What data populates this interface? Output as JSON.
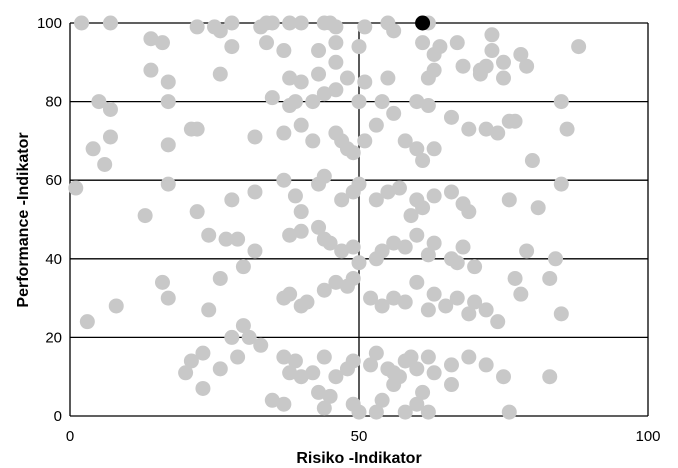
{
  "chart_data": {
    "type": "scatter",
    "title": "",
    "xlabel": "Risiko -Indikator",
    "ylabel": "Performance -Indikator",
    "xlim": [
      0,
      100
    ],
    "ylim": [
      0,
      100
    ],
    "x_ticks": [
      "0",
      "50",
      "100"
    ],
    "y_ticks": [
      "0",
      "20",
      "40",
      "60",
      "80",
      "100"
    ],
    "grid": "horizontal lines at every 20 on y; vertical line at x = 50",
    "legend": "none",
    "colors": {
      "points": "#c8c8c8",
      "highlight": "#000000",
      "grid": "#000000"
    },
    "highlight_point": {
      "x": 61,
      "y": 100
    },
    "series": [
      {
        "values": [
          [
            2,
            100
          ],
          [
            7,
            100
          ],
          [
            22,
            99
          ],
          [
            26,
            98
          ],
          [
            28,
            100
          ],
          [
            34,
            100
          ],
          [
            35,
            100
          ],
          [
            38,
            100
          ],
          [
            40,
            100
          ],
          [
            44,
            100
          ],
          [
            45,
            100
          ],
          [
            46,
            99
          ],
          [
            51,
            99
          ],
          [
            55,
            100
          ],
          [
            56,
            98
          ],
          [
            62,
            100
          ],
          [
            14,
            96
          ],
          [
            16,
            95
          ],
          [
            25,
            99
          ],
          [
            28,
            94
          ],
          [
            33,
            99
          ],
          [
            34,
            95
          ],
          [
            37,
            93
          ],
          [
            43,
            93
          ],
          [
            46,
            95
          ],
          [
            50,
            94
          ],
          [
            61,
            95
          ],
          [
            63,
            92
          ],
          [
            64,
            94
          ],
          [
            67,
            95
          ],
          [
            73,
            97
          ],
          [
            78,
            92
          ],
          [
            88,
            94
          ],
          [
            14,
            88
          ],
          [
            17,
            85
          ],
          [
            26,
            87
          ],
          [
            38,
            86
          ],
          [
            40,
            85
          ],
          [
            43,
            87
          ],
          [
            46,
            90
          ],
          [
            48,
            86
          ],
          [
            51,
            85
          ],
          [
            55,
            86
          ],
          [
            62,
            86
          ],
          [
            63,
            88
          ],
          [
            68,
            89
          ],
          [
            71,
            87
          ],
          [
            72,
            89
          ],
          [
            73,
            93
          ],
          [
            75,
            90
          ],
          [
            79,
            89
          ],
          [
            5,
            80
          ],
          [
            7,
            78
          ],
          [
            17,
            80
          ],
          [
            35,
            81
          ],
          [
            38,
            79
          ],
          [
            39,
            80
          ],
          [
            42,
            80
          ],
          [
            44,
            82
          ],
          [
            46,
            83
          ],
          [
            50,
            80
          ],
          [
            54,
            80
          ],
          [
            60,
            80
          ],
          [
            62,
            79
          ],
          [
            71,
            88
          ],
          [
            75,
            86
          ],
          [
            76,
            75
          ],
          [
            85,
            80
          ],
          [
            4,
            68
          ],
          [
            6,
            64
          ],
          [
            7,
            71
          ],
          [
            17,
            69
          ],
          [
            21,
            73
          ],
          [
            22,
            73
          ],
          [
            32,
            71
          ],
          [
            37,
            72
          ],
          [
            40,
            74
          ],
          [
            42,
            70
          ],
          [
            46,
            72
          ],
          [
            47,
            70
          ],
          [
            48,
            68
          ],
          [
            49,
            67
          ],
          [
            51,
            70
          ],
          [
            53,
            74
          ],
          [
            56,
            77
          ],
          [
            58,
            70
          ],
          [
            60,
            68
          ],
          [
            61,
            65
          ],
          [
            63,
            68
          ],
          [
            66,
            76
          ],
          [
            69,
            73
          ],
          [
            72,
            73
          ],
          [
            74,
            72
          ],
          [
            77,
            75
          ],
          [
            80,
            65
          ],
          [
            86,
            73
          ],
          [
            1,
            58
          ],
          [
            13,
            51
          ],
          [
            17,
            59
          ],
          [
            22,
            52
          ],
          [
            28,
            55
          ],
          [
            32,
            57
          ],
          [
            37,
            60
          ],
          [
            39,
            56
          ],
          [
            40,
            52
          ],
          [
            43,
            59
          ],
          [
            44,
            61
          ],
          [
            47,
            55
          ],
          [
            49,
            57
          ],
          [
            50,
            59
          ],
          [
            53,
            55
          ],
          [
            55,
            57
          ],
          [
            57,
            58
          ],
          [
            59,
            51
          ],
          [
            60,
            55
          ],
          [
            61,
            53
          ],
          [
            63,
            56
          ],
          [
            66,
            57
          ],
          [
            68,
            54
          ],
          [
            69,
            52
          ],
          [
            76,
            55
          ],
          [
            81,
            53
          ],
          [
            85,
            59
          ],
          [
            24,
            46
          ],
          [
            27,
            45
          ],
          [
            29,
            45
          ],
          [
            32,
            42
          ],
          [
            38,
            46
          ],
          [
            40,
            47
          ],
          [
            43,
            48
          ],
          [
            44,
            45
          ],
          [
            45,
            44
          ],
          [
            47,
            42
          ],
          [
            49,
            43
          ],
          [
            50,
            39
          ],
          [
            53,
            40
          ],
          [
            54,
            42
          ],
          [
            56,
            44
          ],
          [
            58,
            43
          ],
          [
            60,
            46
          ],
          [
            62,
            41
          ],
          [
            63,
            44
          ],
          [
            66,
            40
          ],
          [
            67,
            39
          ],
          [
            68,
            43
          ],
          [
            70,
            38
          ],
          [
            77,
            35
          ],
          [
            79,
            42
          ],
          [
            84,
            40
          ],
          [
            16,
            34
          ],
          [
            17,
            30
          ],
          [
            24,
            27
          ],
          [
            26,
            35
          ],
          [
            30,
            38
          ],
          [
            37,
            30
          ],
          [
            38,
            31
          ],
          [
            40,
            28
          ],
          [
            41,
            29
          ],
          [
            44,
            32
          ],
          [
            46,
            34
          ],
          [
            48,
            33
          ],
          [
            49,
            35
          ],
          [
            52,
            30
          ],
          [
            54,
            28
          ],
          [
            56,
            30
          ],
          [
            58,
            29
          ],
          [
            60,
            34
          ],
          [
            62,
            27
          ],
          [
            63,
            31
          ],
          [
            65,
            28
          ],
          [
            67,
            30
          ],
          [
            69,
            26
          ],
          [
            70,
            29
          ],
          [
            72,
            27
          ],
          [
            74,
            24
          ],
          [
            78,
            31
          ],
          [
            83,
            35
          ],
          [
            85,
            26
          ],
          [
            8,
            28
          ],
          [
            3,
            24
          ],
          [
            21,
            14
          ],
          [
            23,
            16
          ],
          [
            26,
            12
          ],
          [
            28,
            20
          ],
          [
            30,
            23
          ],
          [
            33,
            18
          ],
          [
            37,
            15
          ],
          [
            39,
            14
          ],
          [
            42,
            11
          ],
          [
            44,
            15
          ],
          [
            46,
            10
          ],
          [
            48,
            12
          ],
          [
            49,
            14
          ],
          [
            52,
            13
          ],
          [
            53,
            16
          ],
          [
            55,
            12
          ],
          [
            56,
            11
          ],
          [
            58,
            14
          ],
          [
            59,
            15
          ],
          [
            60,
            12
          ],
          [
            62,
            15
          ],
          [
            63,
            11
          ],
          [
            66,
            13
          ],
          [
            69,
            15
          ],
          [
            72,
            13
          ],
          [
            75,
            10
          ],
          [
            83,
            10
          ],
          [
            20,
            11
          ],
          [
            23,
            7
          ],
          [
            29,
            15
          ],
          [
            31,
            20
          ],
          [
            35,
            4
          ],
          [
            37,
            3
          ],
          [
            38,
            11
          ],
          [
            40,
            10
          ],
          [
            43,
            6
          ],
          [
            44,
            2
          ],
          [
            45,
            5
          ],
          [
            49,
            3
          ],
          [
            50,
            1
          ],
          [
            53,
            1
          ],
          [
            54,
            4
          ],
          [
            56,
            8
          ],
          [
            57,
            10
          ],
          [
            58,
            1
          ],
          [
            60,
            3
          ],
          [
            61,
            6
          ],
          [
            62,
            1
          ],
          [
            66,
            8
          ],
          [
            76,
            1
          ]
        ]
      }
    ]
  }
}
